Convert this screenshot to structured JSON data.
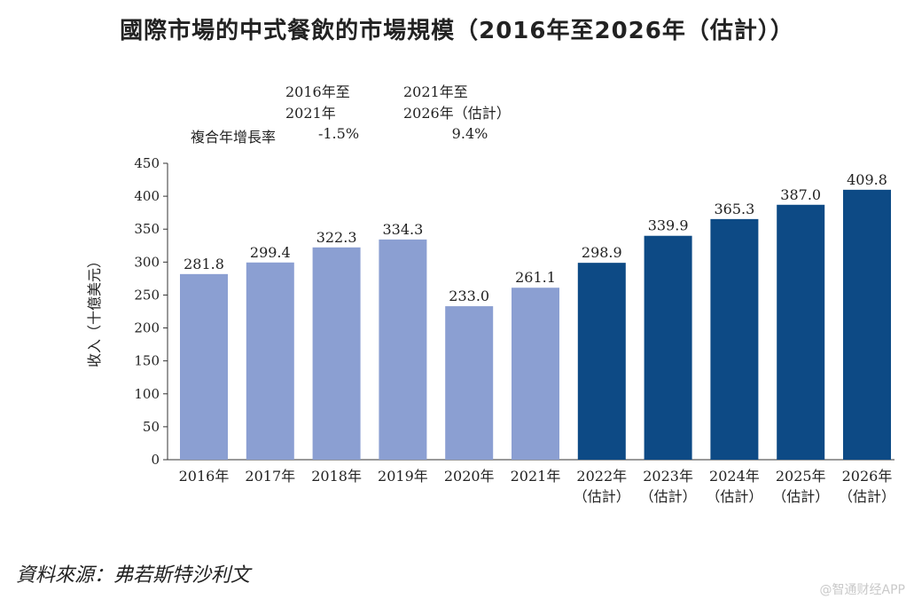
{
  "title": "國際市場的中式餐飲的市場規模（2016年至2026年（估計））",
  "cagr": {
    "period1_line1": "2016年至",
    "period1_line2": "2021年",
    "period2_line1": "2021年至",
    "period2_line2": "2026年（估計）",
    "row_label": "複合年增長率",
    "period1_value": "-1.5%",
    "period2_value": "9.4%"
  },
  "source": "資料來源：弗若斯特沙利文",
  "watermark": "@智通财经APP",
  "colors": {
    "actual": "#8b9fd2",
    "forecast": "#0d4a85",
    "axis": "#333333"
  },
  "chart_data": {
    "type": "bar",
    "title": "國際市場的中式餐飲的市場規模（2016年至2026年（估計））",
    "ylabel": "收入（十億美元）",
    "xlabel": "",
    "ylim": [
      0,
      450
    ],
    "yticks": [
      0,
      50,
      100,
      150,
      200,
      250,
      300,
      350,
      400,
      450
    ],
    "categories": [
      "2016年",
      "2017年",
      "2018年",
      "2019年",
      "2020年",
      "2021年",
      "2022年",
      "2023年",
      "2024年",
      "2025年",
      "2026年"
    ],
    "sublabels": [
      "",
      "",
      "",
      "",
      "",
      "",
      "（估計）",
      "（估計）",
      "（估計）",
      "（估計）",
      "（估計）"
    ],
    "values": [
      281.8,
      299.4,
      322.3,
      334.3,
      233.0,
      261.1,
      298.9,
      339.9,
      365.3,
      387.0,
      409.8
    ],
    "value_labels": [
      "281.8",
      "299.4",
      "322.3",
      "334.3",
      "233.0",
      "261.1",
      "298.9",
      "339.9",
      "365.3",
      "387.0",
      "409.8"
    ],
    "forecast": [
      false,
      false,
      false,
      false,
      false,
      false,
      true,
      true,
      true,
      true,
      true
    ],
    "grid": false
  }
}
